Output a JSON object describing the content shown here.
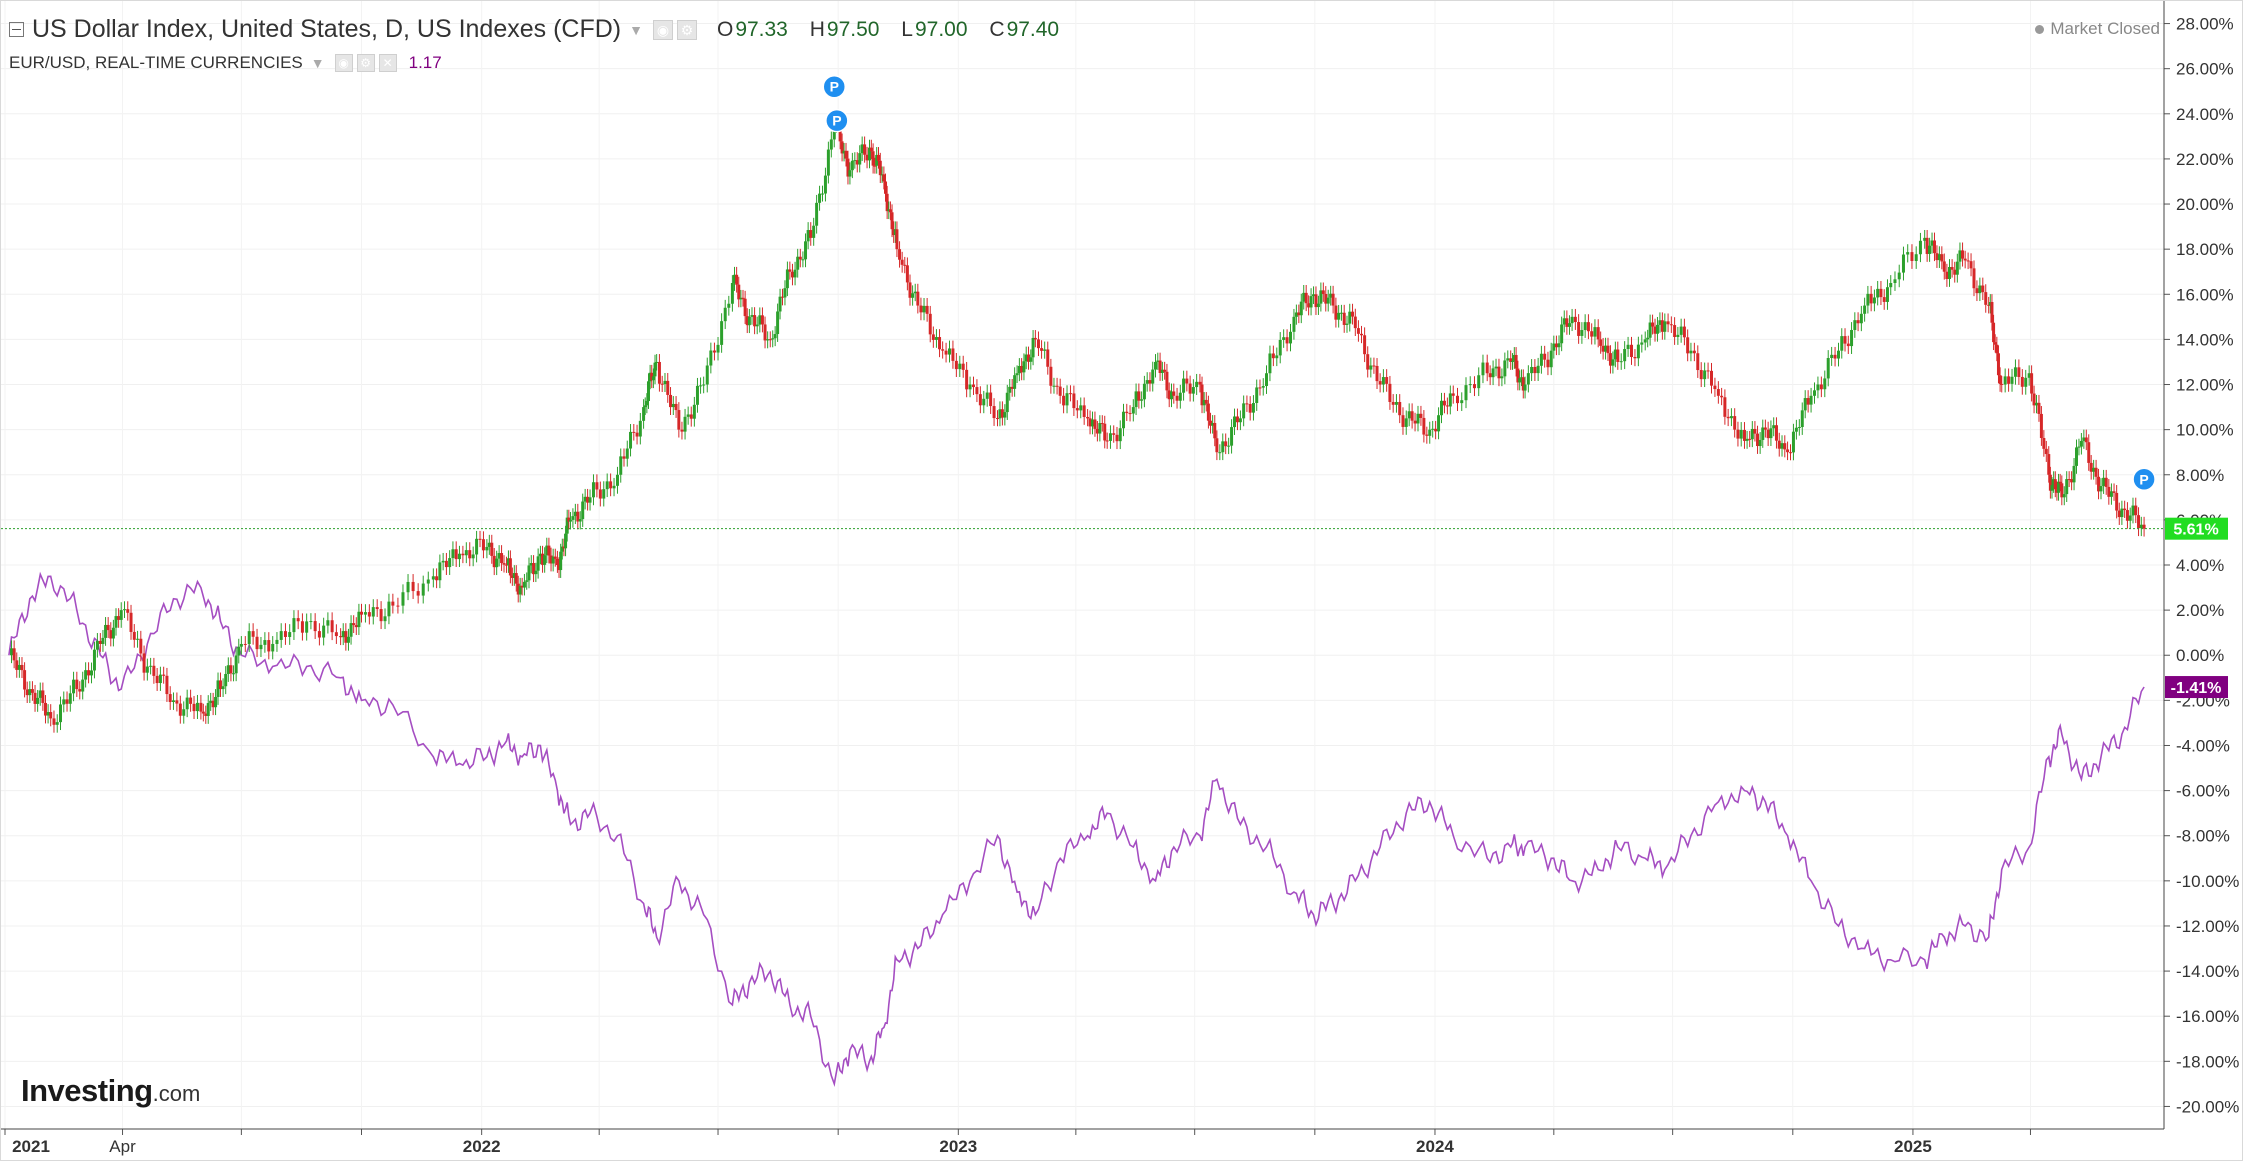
{
  "legend": {
    "main": {
      "title": "US Dollar Index, United States, D, US Indexes (CFD)",
      "ohlc": [
        {
          "label": "O",
          "value": "97.33"
        },
        {
          "label": "H",
          "value": "97.50"
        },
        {
          "label": "L",
          "value": "97.00"
        },
        {
          "label": "C",
          "value": "97.40"
        }
      ]
    },
    "compare": {
      "title": "EUR/USD, REAL-TIME CURRENCIES",
      "value": "1.17"
    }
  },
  "market_status": "Market Closed",
  "brand": {
    "name": "Investing",
    "suffix": ".com"
  },
  "colors": {
    "up": "#2ca02c",
    "down": "#d62728",
    "compare_line": "#a54ec2",
    "last_main_badge": "#22dd22",
    "last_compare_badge": "#800080",
    "marker": "#1f8ff0"
  },
  "chart_data": {
    "type": "line",
    "x_axis": {
      "tick_labels": [
        "2021",
        "Apr",
        "2022",
        "2023",
        "2024",
        "2025"
      ],
      "range": [
        "2021-01-01",
        "2025-06-30"
      ]
    },
    "y_axis": {
      "unit": "%",
      "range": [
        -21,
        29
      ],
      "tick_labels": [
        "28.00%",
        "26.00%",
        "24.00%",
        "22.00%",
        "20.00%",
        "18.00%",
        "16.00%",
        "14.00%",
        "12.00%",
        "10.00%",
        "8.00%",
        "6.00%",
        "4.00%",
        "2.00%",
        "0.00%",
        "-2.00%",
        "-4.00%",
        "-6.00%",
        "-8.00%",
        "-10.00%",
        "-12.00%",
        "-14.00%",
        "-16.00%",
        "-18.00%",
        "-20.00%"
      ],
      "grid": true
    },
    "series": [
      {
        "name": "US Dollar Index, United States, D, US Indexes (CFD)",
        "style": "candlestick",
        "last_label": "5.61%",
        "points": [
          [
            "2021-01-04",
            0.0
          ],
          [
            "2021-01-20",
            -1.5
          ],
          [
            "2021-02-05",
            -2.8
          ],
          [
            "2021-02-25",
            -1.5
          ],
          [
            "2021-03-15",
            0.5
          ],
          [
            "2021-03-31",
            2.0
          ],
          [
            "2021-04-20",
            -0.5
          ],
          [
            "2021-05-10",
            -2.0
          ],
          [
            "2021-05-31",
            -2.5
          ],
          [
            "2021-06-15",
            -1.5
          ],
          [
            "2021-07-01",
            0.5
          ],
          [
            "2021-07-25",
            0.5
          ],
          [
            "2021-08-20",
            1.5
          ],
          [
            "2021-09-15",
            0.8
          ],
          [
            "2021-10-01",
            1.8
          ],
          [
            "2021-10-25",
            2.2
          ],
          [
            "2021-11-25",
            3.5
          ],
          [
            "2021-12-15",
            4.5
          ],
          [
            "2022-01-05",
            4.8
          ],
          [
            "2022-01-20",
            4.0
          ],
          [
            "2022-02-01",
            3.0
          ],
          [
            "2022-02-15",
            4.5
          ],
          [
            "2022-02-28",
            4.0
          ],
          [
            "2022-03-10",
            6.0
          ],
          [
            "2022-03-25",
            7.0
          ],
          [
            "2022-04-15",
            8.0
          ],
          [
            "2022-05-05",
            11.0
          ],
          [
            "2022-05-15",
            13.0
          ],
          [
            "2022-06-01",
            10.0
          ],
          [
            "2022-06-20",
            12.0
          ],
          [
            "2022-07-12",
            16.5
          ],
          [
            "2022-07-25",
            15.0
          ],
          [
            "2022-08-10",
            14.0
          ],
          [
            "2022-08-25",
            17.0
          ],
          [
            "2022-09-10",
            18.5
          ],
          [
            "2022-09-28",
            23.5
          ],
          [
            "2022-10-10",
            21.5
          ],
          [
            "2022-10-25",
            22.5
          ],
          [
            "2022-11-05",
            21.0
          ],
          [
            "2022-11-15",
            18.0
          ],
          [
            "2022-12-01",
            15.5
          ],
          [
            "2022-12-20",
            13.5
          ],
          [
            "2023-01-10",
            12.0
          ],
          [
            "2023-01-31",
            10.5
          ],
          [
            "2023-02-15",
            12.5
          ],
          [
            "2023-03-01",
            14.0
          ],
          [
            "2023-03-20",
            11.5
          ],
          [
            "2023-04-10",
            10.5
          ],
          [
            "2023-04-25",
            9.5
          ],
          [
            "2023-05-15",
            11.0
          ],
          [
            "2023-06-01",
            13.0
          ],
          [
            "2023-06-15",
            11.5
          ],
          [
            "2023-07-05",
            12.0
          ],
          [
            "2023-07-18",
            9.0
          ],
          [
            "2023-08-05",
            10.5
          ],
          [
            "2023-08-25",
            12.5
          ],
          [
            "2023-09-15",
            15.0
          ],
          [
            "2023-09-30",
            16.0
          ],
          [
            "2023-10-15",
            15.5
          ],
          [
            "2023-11-01",
            14.5
          ],
          [
            "2023-11-20",
            12.0
          ],
          [
            "2023-12-10",
            10.5
          ],
          [
            "2023-12-28",
            10.0
          ],
          [
            "2024-01-15",
            11.5
          ],
          [
            "2024-02-10",
            12.5
          ],
          [
            "2024-02-28",
            13.0
          ],
          [
            "2024-03-10",
            12.0
          ],
          [
            "2024-03-30",
            13.5
          ],
          [
            "2024-04-15",
            15.0
          ],
          [
            "2024-05-05",
            14.0
          ],
          [
            "2024-05-20",
            13.0
          ],
          [
            "2024-06-10",
            14.0
          ],
          [
            "2024-06-25",
            14.8
          ],
          [
            "2024-07-15",
            13.5
          ],
          [
            "2024-08-05",
            11.5
          ],
          [
            "2024-08-25",
            9.5
          ],
          [
            "2024-09-10",
            10.0
          ],
          [
            "2024-09-27",
            9.0
          ],
          [
            "2024-10-15",
            11.5
          ],
          [
            "2024-11-05",
            13.5
          ],
          [
            "2024-11-25",
            15.5
          ],
          [
            "2024-12-15",
            16.5
          ],
          [
            "2025-01-10",
            18.5
          ],
          [
            "2025-01-25",
            17.0
          ],
          [
            "2025-02-10",
            17.5
          ],
          [
            "2025-02-28",
            15.5
          ],
          [
            "2025-03-10",
            12.0
          ],
          [
            "2025-03-31",
            12.5
          ],
          [
            "2025-04-15",
            8.0
          ],
          [
            "2025-04-25",
            7.0
          ],
          [
            "2025-05-10",
            9.5
          ],
          [
            "2025-05-25",
            7.5
          ],
          [
            "2025-06-10",
            6.5
          ],
          [
            "2025-06-27",
            5.61
          ]
        ]
      },
      {
        "name": "EUR/USD, REAL-TIME CURRENCIES",
        "style": "line",
        "last_label": "-1.41%",
        "points": [
          [
            "2021-01-04",
            0.0
          ],
          [
            "2021-01-20",
            2.5
          ],
          [
            "2021-02-05",
            3.5
          ],
          [
            "2021-02-25",
            2.0
          ],
          [
            "2021-03-15",
            0.0
          ],
          [
            "2021-03-31",
            -1.5
          ],
          [
            "2021-04-20",
            0.5
          ],
          [
            "2021-05-10",
            2.5
          ],
          [
            "2021-05-31",
            3.0
          ],
          [
            "2021-06-15",
            1.5
          ],
          [
            "2021-07-01",
            0.0
          ],
          [
            "2021-07-25",
            -0.5
          ],
          [
            "2021-08-20",
            -0.5
          ],
          [
            "2021-09-15",
            -1.0
          ],
          [
            "2021-10-01",
            -2.0
          ],
          [
            "2021-10-25",
            -2.2
          ],
          [
            "2021-11-25",
            -4.5
          ],
          [
            "2021-12-15",
            -4.8
          ],
          [
            "2022-01-05",
            -4.5
          ],
          [
            "2022-01-20",
            -3.8
          ],
          [
            "2022-02-01",
            -4.5
          ],
          [
            "2022-02-15",
            -4.0
          ],
          [
            "2022-02-28",
            -6.0
          ],
          [
            "2022-03-10",
            -7.5
          ],
          [
            "2022-03-25",
            -7.0
          ],
          [
            "2022-04-15",
            -8.0
          ],
          [
            "2022-05-05",
            -11.0
          ],
          [
            "2022-05-15",
            -12.5
          ],
          [
            "2022-06-01",
            -10.0
          ],
          [
            "2022-06-20",
            -11.5
          ],
          [
            "2022-07-12",
            -15.5
          ],
          [
            "2022-07-25",
            -14.5
          ],
          [
            "2022-08-10",
            -14.0
          ],
          [
            "2022-08-25",
            -15.5
          ],
          [
            "2022-09-10",
            -16.0
          ],
          [
            "2022-09-28",
            -19.0
          ],
          [
            "2022-10-10",
            -17.5
          ],
          [
            "2022-10-25",
            -18.0
          ],
          [
            "2022-11-05",
            -16.5
          ],
          [
            "2022-11-15",
            -13.5
          ],
          [
            "2022-12-01",
            -13.0
          ],
          [
            "2022-12-20",
            -11.5
          ],
          [
            "2023-01-10",
            -10.0
          ],
          [
            "2023-01-31",
            -8.0
          ],
          [
            "2023-02-15",
            -10.5
          ],
          [
            "2023-03-01",
            -11.5
          ],
          [
            "2023-03-20",
            -9.0
          ],
          [
            "2023-04-10",
            -8.0
          ],
          [
            "2023-04-25",
            -7.0
          ],
          [
            "2023-05-15",
            -8.5
          ],
          [
            "2023-06-01",
            -10.0
          ],
          [
            "2023-06-15",
            -8.5
          ],
          [
            "2023-07-05",
            -8.0
          ],
          [
            "2023-07-18",
            -5.5
          ],
          [
            "2023-08-05",
            -7.5
          ],
          [
            "2023-08-25",
            -8.5
          ],
          [
            "2023-09-15",
            -10.5
          ],
          [
            "2023-09-30",
            -11.5
          ],
          [
            "2023-10-15",
            -11.0
          ],
          [
            "2023-11-01",
            -10.0
          ],
          [
            "2023-11-20",
            -8.5
          ],
          [
            "2023-12-10",
            -7.0
          ],
          [
            "2023-12-28",
            -6.5
          ],
          [
            "2024-01-15",
            -8.0
          ],
          [
            "2024-02-10",
            -9.0
          ],
          [
            "2024-02-28",
            -8.5
          ],
          [
            "2024-03-10",
            -8.5
          ],
          [
            "2024-03-30",
            -9.0
          ],
          [
            "2024-04-15",
            -10.0
          ],
          [
            "2024-05-05",
            -9.5
          ],
          [
            "2024-05-20",
            -8.5
          ],
          [
            "2024-06-10",
            -9.0
          ],
          [
            "2024-06-25",
            -9.5
          ],
          [
            "2024-07-15",
            -8.0
          ],
          [
            "2024-08-05",
            -6.5
          ],
          [
            "2024-08-25",
            -6.0
          ],
          [
            "2024-09-10",
            -6.5
          ],
          [
            "2024-09-27",
            -8.0
          ],
          [
            "2024-10-15",
            -10.0
          ],
          [
            "2024-11-05",
            -12.0
          ],
          [
            "2024-11-25",
            -13.0
          ],
          [
            "2024-12-15",
            -13.5
          ],
          [
            "2025-01-10",
            -13.5
          ],
          [
            "2025-01-25",
            -12.5
          ],
          [
            "2025-02-10",
            -12.0
          ],
          [
            "2025-02-28",
            -12.5
          ],
          [
            "2025-03-10",
            -9.5
          ],
          [
            "2025-03-31",
            -8.5
          ],
          [
            "2025-04-15",
            -4.5
          ],
          [
            "2025-04-25",
            -3.5
          ],
          [
            "2025-05-10",
            -5.5
          ],
          [
            "2025-05-25",
            -4.5
          ],
          [
            "2025-06-10",
            -3.5
          ],
          [
            "2025-06-27",
            -1.41
          ]
        ]
      }
    ],
    "markers": [
      {
        "date": "2022-09-28",
        "value": 25.2,
        "label": "P"
      },
      {
        "date": "2022-09-30",
        "value": 23.7,
        "label": "P"
      },
      {
        "date": "2025-06-27",
        "value": 7.8,
        "label": "P"
      }
    ]
  }
}
